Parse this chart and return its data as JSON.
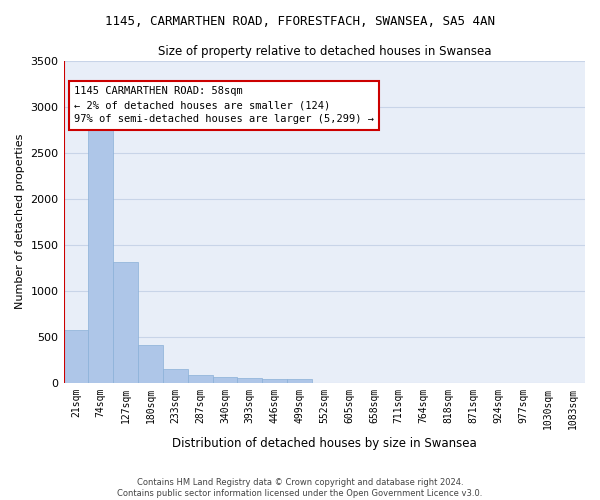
{
  "title": "1145, CARMARTHEN ROAD, FFORESTFACH, SWANSEA, SA5 4AN",
  "subtitle": "Size of property relative to detached houses in Swansea",
  "xlabel": "Distribution of detached houses by size in Swansea",
  "ylabel": "Number of detached properties",
  "footer_line1": "Contains HM Land Registry data © Crown copyright and database right 2024.",
  "footer_line2": "Contains public sector information licensed under the Open Government Licence v3.0.",
  "bin_labels": [
    "21sqm",
    "74sqm",
    "127sqm",
    "180sqm",
    "233sqm",
    "287sqm",
    "340sqm",
    "393sqm",
    "446sqm",
    "499sqm",
    "552sqm",
    "605sqm",
    "658sqm",
    "711sqm",
    "764sqm",
    "818sqm",
    "871sqm",
    "924sqm",
    "977sqm",
    "1030sqm",
    "1083sqm"
  ],
  "bar_values": [
    570,
    2920,
    1310,
    410,
    150,
    85,
    60,
    55,
    45,
    40,
    0,
    0,
    0,
    0,
    0,
    0,
    0,
    0,
    0,
    0,
    0
  ],
  "bar_color": "#aec6e8",
  "bar_edge_color": "#8ab0d8",
  "grid_color": "#c8d4e8",
  "background_color": "#e8eef8",
  "marker_color": "#cc0000",
  "annotation_text": "1145 CARMARTHEN ROAD: 58sqm\n← 2% of detached houses are smaller (124)\n97% of semi-detached houses are larger (5,299) →",
  "annotation_box_color": "#ffffff",
  "annotation_border_color": "#cc0000",
  "ylim": [
    0,
    3500
  ],
  "yticks": [
    0,
    500,
    1000,
    1500,
    2000,
    2500,
    3000,
    3500
  ]
}
